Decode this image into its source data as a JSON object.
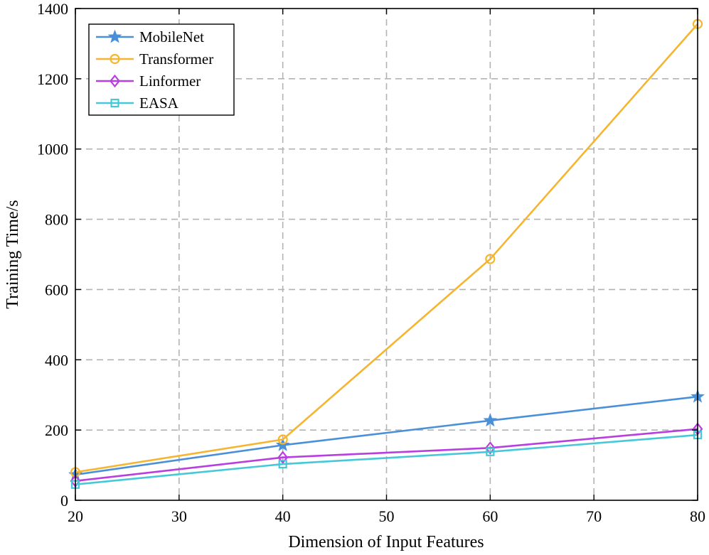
{
  "chart_data": {
    "type": "line",
    "title": "",
    "xlabel": "Dimension of Input Features",
    "ylabel": "Training Time/s",
    "xlim": [
      20,
      80
    ],
    "ylim": [
      0,
      1400
    ],
    "xticks": [
      20,
      30,
      40,
      50,
      60,
      70,
      80
    ],
    "yticks": [
      0,
      200,
      400,
      600,
      800,
      1000,
      1200,
      1400
    ],
    "xtick_labels": [
      "20",
      "30",
      "40",
      "50",
      "60",
      "70",
      "80"
    ],
    "ytick_labels": [
      "0",
      "200",
      "400",
      "600",
      "800",
      "1000",
      "1200",
      "1400"
    ],
    "grid": true,
    "legend_position": "top-left",
    "x": [
      20,
      40,
      60,
      80
    ],
    "series": [
      {
        "name": "MobileNet",
        "values": [
          73,
          157,
          227,
          295
        ],
        "color": "#4a90d9",
        "marker": "star"
      },
      {
        "name": "Transformer",
        "values": [
          80,
          173,
          687,
          1356
        ],
        "color": "#f5b530",
        "marker": "circle"
      },
      {
        "name": "Linformer",
        "values": [
          55,
          122,
          149,
          203
        ],
        "color": "#b83ee0",
        "marker": "diamond"
      },
      {
        "name": "EASA",
        "values": [
          45,
          103,
          138,
          186
        ],
        "color": "#45c8d8",
        "marker": "square"
      }
    ]
  }
}
